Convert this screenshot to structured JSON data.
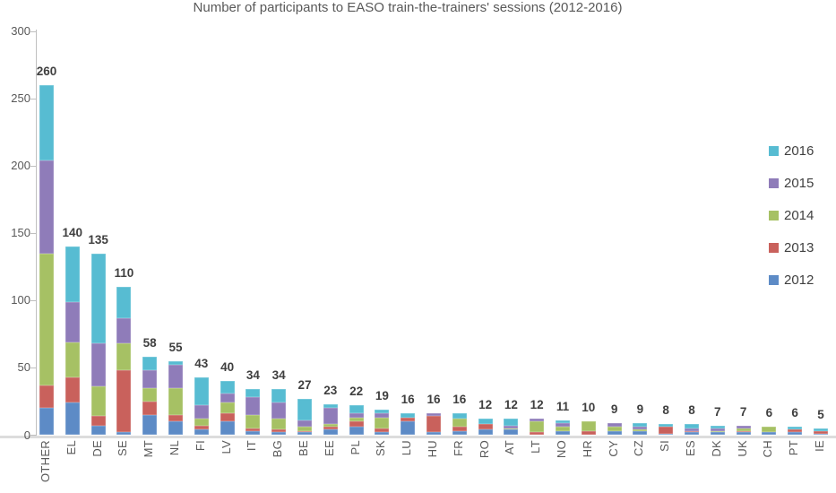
{
  "chart_data": {
    "type": "bar",
    "stacked": true,
    "title": "Number of participants to EASO train-the-trainers' sessions (2012-2016)",
    "categories": [
      "OTHER",
      "EL",
      "DE",
      "SE",
      "MT",
      "NL",
      "FI",
      "LV",
      "IT",
      "BG",
      "BE",
      "EE",
      "PL",
      "SK",
      "LU",
      "HU",
      "FR",
      "RO",
      "AT",
      "LT",
      "NO",
      "HR",
      "CY",
      "CZ",
      "SI",
      "ES",
      "DK",
      "UK",
      "CH",
      "PT",
      "IE"
    ],
    "series": [
      {
        "name": "2012",
        "color": "#5d8bc6",
        "values": [
          20,
          24,
          7,
          2,
          15,
          10,
          4,
          10,
          3,
          2,
          2,
          4,
          6,
          2,
          10,
          2,
          3,
          4,
          4,
          0,
          3,
          0,
          3,
          3,
          1,
          2,
          2,
          2,
          2,
          2,
          1
        ]
      },
      {
        "name": "2013",
        "color": "#c9615c",
        "values": [
          17,
          19,
          7,
          46,
          10,
          5,
          3,
          6,
          2,
          2,
          1,
          2,
          4,
          3,
          3,
          12,
          3,
          4,
          0,
          2,
          0,
          3,
          0,
          0,
          5,
          1,
          0,
          1,
          0,
          2,
          2
        ]
      },
      {
        "name": "2014",
        "color": "#a6c164",
        "values": [
          98,
          26,
          22,
          20,
          10,
          20,
          5,
          8,
          10,
          8,
          3,
          2,
          3,
          8,
          0,
          0,
          6,
          0,
          1,
          8,
          3,
          7,
          3,
          1,
          0,
          0,
          1,
          2,
          4,
          0,
          0
        ]
      },
      {
        "name": "2015",
        "color": "#8f7cb9",
        "values": [
          69,
          30,
          32,
          19,
          13,
          17,
          10,
          7,
          13,
          12,
          5,
          12,
          3,
          3,
          0,
          2,
          0,
          0,
          2,
          2,
          3,
          0,
          3,
          2,
          0,
          2,
          2,
          2,
          0,
          0,
          0
        ]
      },
      {
        "name": "2016",
        "color": "#57bcd2",
        "values": [
          56,
          41,
          67,
          23,
          10,
          3,
          21,
          9,
          6,
          10,
          16,
          3,
          6,
          3,
          3,
          0,
          4,
          4,
          5,
          0,
          2,
          0,
          0,
          3,
          2,
          3,
          2,
          0,
          0,
          2,
          2
        ]
      }
    ],
    "totals": [
      260,
      140,
      135,
      110,
      58,
      55,
      43,
      40,
      34,
      34,
      27,
      23,
      22,
      19,
      16,
      16,
      16,
      12,
      12,
      12,
      11,
      10,
      9,
      9,
      8,
      8,
      7,
      7,
      6,
      6,
      5
    ],
    "ylim": [
      0,
      300
    ],
    "yticks": [
      0,
      50,
      100,
      150,
      200,
      250,
      300
    ],
    "legend_position": "right",
    "legend_order": [
      "2016",
      "2015",
      "2014",
      "2013",
      "2012"
    ],
    "grid": false,
    "axis_color": "#bfbfbf",
    "tick_text_color": "#595959",
    "data_label_color": "#3f3f3f"
  }
}
